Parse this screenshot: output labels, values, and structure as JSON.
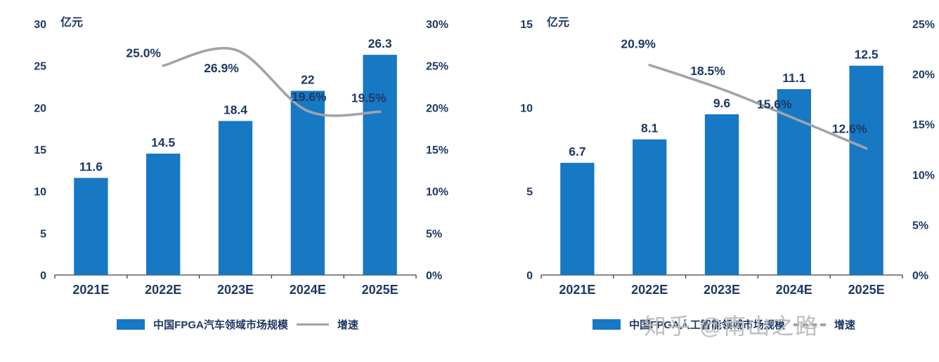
{
  "watermark": {
    "text": "知乎 @南山之路"
  },
  "colors": {
    "bar": "#1778C4",
    "text": "#1F3864",
    "line": "#9FA4A9",
    "axis": "#404040",
    "watermark": "#BFBFBF"
  },
  "chart_data": [
    {
      "type": "bar",
      "title": "",
      "unit_label": "亿元",
      "categories": [
        "2021E",
        "2022E",
        "2023E",
        "2024E",
        "2025E"
      ],
      "bar_series": {
        "name": "中国FPGA汽车领域市场规模",
        "values": [
          11.6,
          14.5,
          18.4,
          22,
          26.3
        ],
        "labels": [
          "11.6",
          "14.5",
          "18.4",
          "22",
          "26.3"
        ]
      },
      "line_series": {
        "name": "增速",
        "values": [
          null,
          25.0,
          26.9,
          19.6,
          19.5
        ],
        "labels": [
          "",
          "25.0%",
          "26.9%",
          "19.6%",
          "19.5%"
        ]
      },
      "left_axis": {
        "min": 0,
        "max": 30,
        "ticks": [
          "0",
          "5",
          "10",
          "15",
          "20",
          "25",
          "30"
        ]
      },
      "right_axis": {
        "min": 0,
        "max": 30,
        "ticks": [
          "0%",
          "5%",
          "10%",
          "15%",
          "20%",
          "25%",
          "30%"
        ]
      },
      "legend": [
        {
          "type": "bar",
          "label": "中国FPGA汽车领域市场规模"
        },
        {
          "type": "line",
          "label": "增速",
          "dashed": false
        }
      ]
    },
    {
      "type": "bar",
      "title": "",
      "unit_label": "亿元",
      "categories": [
        "2021E",
        "2022E",
        "2023E",
        "2024E",
        "2025E"
      ],
      "bar_series": {
        "name": "中国FPGA人工智能领域市场规模",
        "values": [
          6.7,
          8.1,
          9.6,
          11.1,
          12.5
        ],
        "labels": [
          "6.7",
          "8.1",
          "9.6",
          "11.1",
          "12.5"
        ]
      },
      "line_series": {
        "name": "增速",
        "values": [
          null,
          20.9,
          18.5,
          15.6,
          12.6
        ],
        "labels": [
          "",
          "20.9%",
          "18.5%",
          "15.6%",
          "12.6%"
        ]
      },
      "left_axis": {
        "min": 0,
        "max": 15,
        "ticks": [
          "0",
          "5",
          "10",
          "15"
        ]
      },
      "right_axis": {
        "min": 0,
        "max": 25,
        "ticks": [
          "0%",
          "5%",
          "10%",
          "15%",
          "20%",
          "25%"
        ]
      },
      "legend": [
        {
          "type": "bar",
          "label": "中国FPGA人工智能领域市场规模"
        },
        {
          "type": "line",
          "label": "增速",
          "dashed": true
        }
      ]
    }
  ]
}
